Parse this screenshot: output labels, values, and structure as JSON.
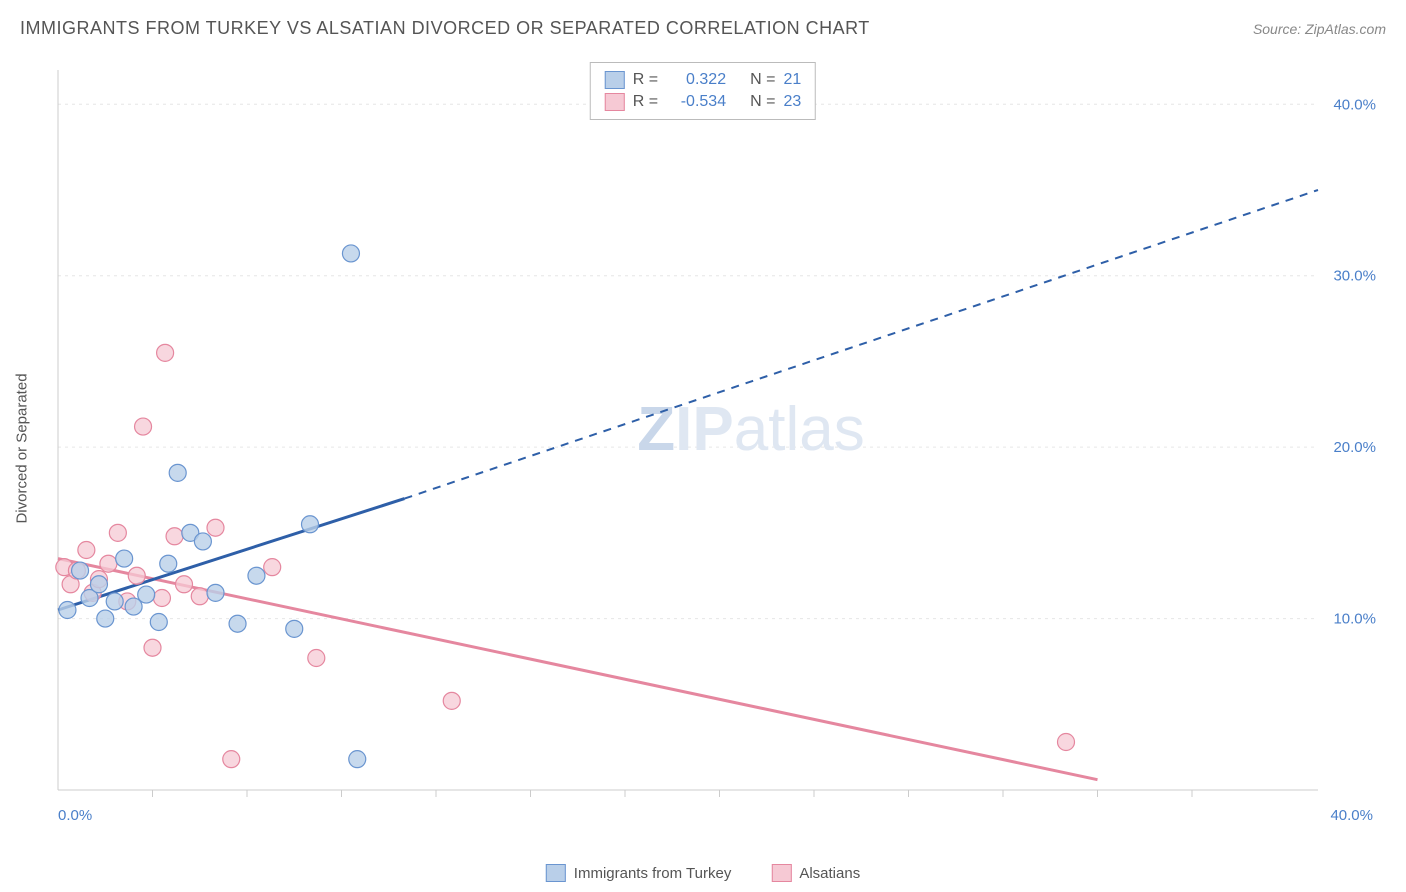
{
  "title": "IMMIGRANTS FROM TURKEY VS ALSATIAN DIVORCED OR SEPARATED CORRELATION CHART",
  "source": "Source: ZipAtlas.com",
  "ylabel": "Divorced or Separated",
  "watermark": {
    "z": "Z",
    "ip": "IP",
    "atlas": "atlas",
    "z_color": "#c9d7ea",
    "rest_color": "#dfe7f2"
  },
  "chart": {
    "type": "scatter-with-regression",
    "background_color": "#ffffff",
    "grid_color": "#e6e6e6",
    "axis_color": "#cccccc",
    "tick_font_color": "#4a7fc9",
    "label_font_color": "#555555",
    "xlim": [
      0,
      40
    ],
    "ylim": [
      0,
      42
    ],
    "yticks": [
      10,
      20,
      30,
      40
    ],
    "ytick_labels": [
      "10.0%",
      "20.0%",
      "30.0%",
      "40.0%"
    ],
    "xticks": [
      0,
      40
    ],
    "xtick_labels": [
      "0.0%",
      "40.0%"
    ],
    "xtick_minor": [
      3,
      6,
      9,
      12,
      15,
      18,
      21,
      24,
      27,
      30,
      33,
      36
    ],
    "legend_top": {
      "series": [
        {
          "swatch_fill": "#b9cfe9",
          "swatch_border": "#6a95d0",
          "r_label": "R =",
          "r_value": "0.322",
          "n_label": "N =",
          "n_value": "21"
        },
        {
          "swatch_fill": "#f6c9d4",
          "swatch_border": "#e5879f",
          "r_label": "R =",
          "r_value": "-0.534",
          "n_label": "N =",
          "n_value": "23"
        }
      ]
    },
    "legend_bottom": {
      "items": [
        {
          "swatch_fill": "#b9cfe9",
          "swatch_border": "#6a95d0",
          "label": "Immigrants from Turkey"
        },
        {
          "swatch_fill": "#f6c9d4",
          "swatch_border": "#e5879f",
          "label": "Alsatians"
        }
      ]
    },
    "series_blue": {
      "marker_fill": "#b9cfe9",
      "marker_stroke": "#6a95d0",
      "marker_r": 8.5,
      "marker_opacity": 0.8,
      "line_color": "#2e5fa8",
      "line_width": 3,
      "reg_solid": {
        "x1": 0,
        "y1": 10.5,
        "x2": 11,
        "y2": 17
      },
      "reg_dash": {
        "x1": 11,
        "y1": 17,
        "x2": 40,
        "y2": 35
      },
      "points": [
        {
          "x": 0.3,
          "y": 10.5
        },
        {
          "x": 0.7,
          "y": 12.8
        },
        {
          "x": 1.0,
          "y": 11.2
        },
        {
          "x": 1.3,
          "y": 12.0
        },
        {
          "x": 1.5,
          "y": 10.0
        },
        {
          "x": 1.8,
          "y": 11.0
        },
        {
          "x": 2.1,
          "y": 13.5
        },
        {
          "x": 2.4,
          "y": 10.7
        },
        {
          "x": 2.8,
          "y": 11.4
        },
        {
          "x": 3.2,
          "y": 9.8
        },
        {
          "x": 3.5,
          "y": 13.2
        },
        {
          "x": 3.8,
          "y": 18.5
        },
        {
          "x": 4.2,
          "y": 15.0
        },
        {
          "x": 4.6,
          "y": 14.5
        },
        {
          "x": 5.0,
          "y": 11.5
        },
        {
          "x": 5.7,
          "y": 9.7
        },
        {
          "x": 6.3,
          "y": 12.5
        },
        {
          "x": 7.5,
          "y": 9.4
        },
        {
          "x": 8.0,
          "y": 15.5
        },
        {
          "x": 9.3,
          "y": 31.3
        },
        {
          "x": 9.5,
          "y": 1.8
        }
      ]
    },
    "series_pink": {
      "marker_fill": "#f6c9d4",
      "marker_stroke": "#e5879f",
      "marker_r": 8.5,
      "marker_opacity": 0.75,
      "line_color": "#e5879f",
      "line_width": 3,
      "reg_solid": {
        "x1": 0,
        "y1": 13.5,
        "x2": 33,
        "y2": 0.6
      },
      "points": [
        {
          "x": 0.2,
          "y": 13.0
        },
        {
          "x": 0.4,
          "y": 12.0
        },
        {
          "x": 0.6,
          "y": 12.8
        },
        {
          "x": 0.9,
          "y": 14.0
        },
        {
          "x": 1.1,
          "y": 11.5
        },
        {
          "x": 1.3,
          "y": 12.3
        },
        {
          "x": 1.6,
          "y": 13.2
        },
        {
          "x": 1.9,
          "y": 15.0
        },
        {
          "x": 2.2,
          "y": 11.0
        },
        {
          "x": 2.5,
          "y": 12.5
        },
        {
          "x": 2.7,
          "y": 21.2
        },
        {
          "x": 3.0,
          "y": 8.3
        },
        {
          "x": 3.3,
          "y": 11.2
        },
        {
          "x": 3.4,
          "y": 25.5
        },
        {
          "x": 3.7,
          "y": 14.8
        },
        {
          "x": 4.0,
          "y": 12.0
        },
        {
          "x": 4.5,
          "y": 11.3
        },
        {
          "x": 5.0,
          "y": 15.3
        },
        {
          "x": 5.5,
          "y": 1.8
        },
        {
          "x": 6.8,
          "y": 13.0
        },
        {
          "x": 8.2,
          "y": 7.7
        },
        {
          "x": 12.5,
          "y": 5.2
        },
        {
          "x": 32.0,
          "y": 2.8
        }
      ]
    }
  }
}
